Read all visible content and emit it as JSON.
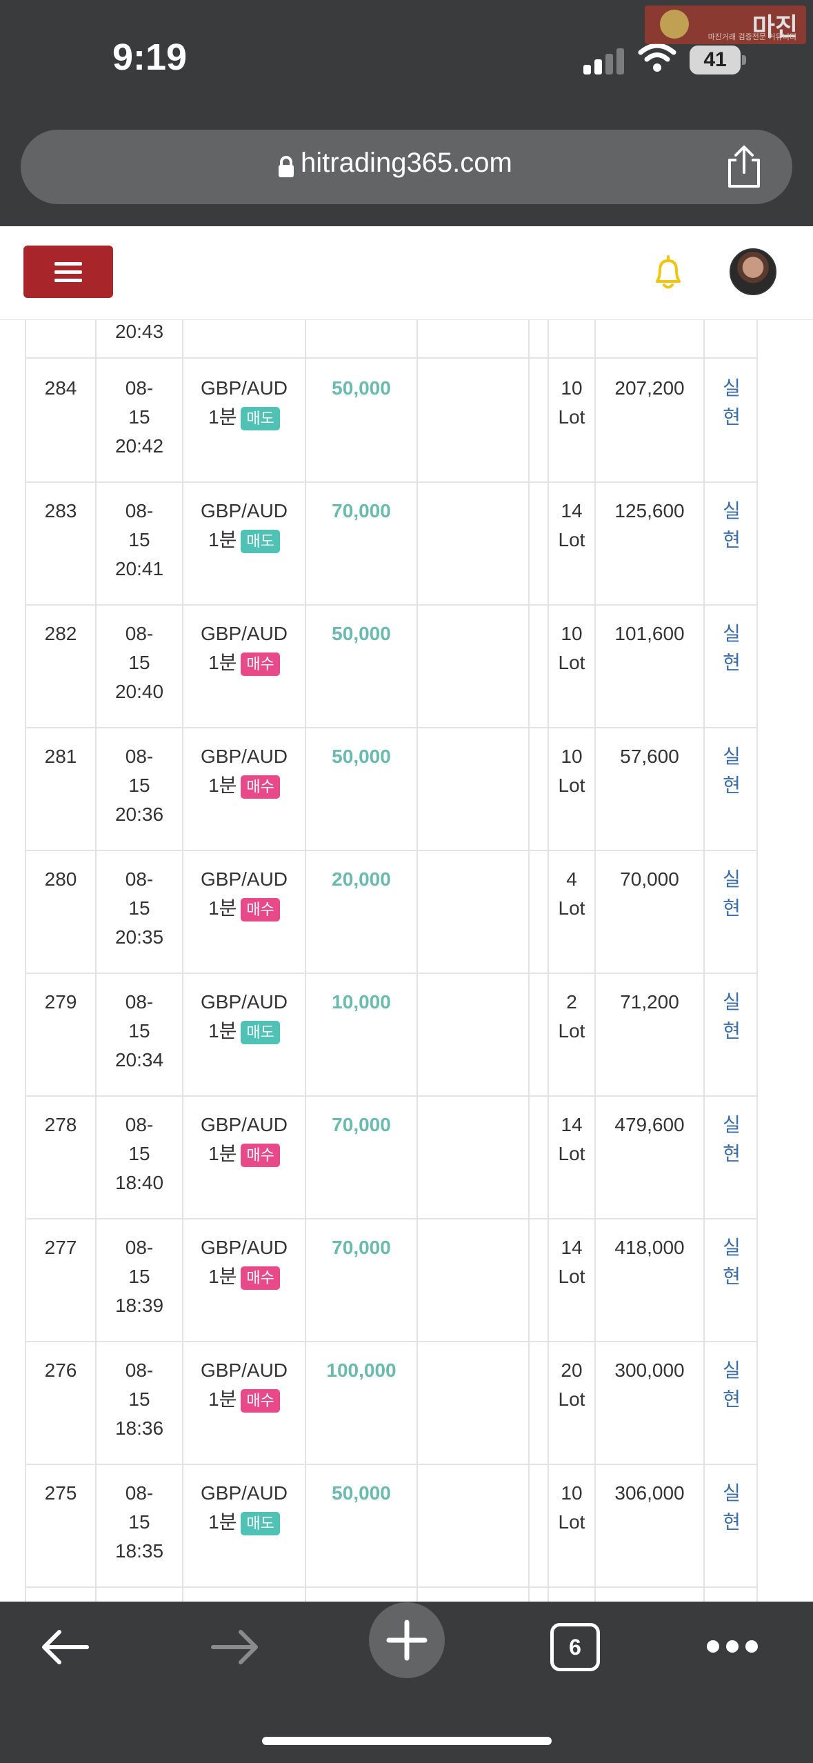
{
  "status_bar": {
    "time": "9:19",
    "battery": "41"
  },
  "watermark": {
    "title": "마진",
    "subtitle": "마진거래 검증전문 커뮤니티"
  },
  "browser": {
    "url": "hitrading365.com",
    "tab_count": "6"
  },
  "table": {
    "partial_top_row": {
      "time": "20:43"
    },
    "rows": [
      {
        "num": "284",
        "date": "08-",
        "day": "15",
        "time": "20:42",
        "pair": "GBP/AUD",
        "period": "1분",
        "side": "매도",
        "side_type": "sell",
        "amount": "50,000",
        "lot": "10",
        "lot_unit": "Lot",
        "profit": "207,200",
        "status1": "실",
        "status2": "현"
      },
      {
        "num": "283",
        "date": "08-",
        "day": "15",
        "time": "20:41",
        "pair": "GBP/AUD",
        "period": "1분",
        "side": "매도",
        "side_type": "sell",
        "amount": "70,000",
        "lot": "14",
        "lot_unit": "Lot",
        "profit": "125,600",
        "status1": "실",
        "status2": "현"
      },
      {
        "num": "282",
        "date": "08-",
        "day": "15",
        "time": "20:40",
        "pair": "GBP/AUD",
        "period": "1분",
        "side": "매수",
        "side_type": "buy",
        "amount": "50,000",
        "lot": "10",
        "lot_unit": "Lot",
        "profit": "101,600",
        "status1": "실",
        "status2": "현"
      },
      {
        "num": "281",
        "date": "08-",
        "day": "15",
        "time": "20:36",
        "pair": "GBP/AUD",
        "period": "1분",
        "side": "매수",
        "side_type": "buy",
        "amount": "50,000",
        "lot": "10",
        "lot_unit": "Lot",
        "profit": "57,600",
        "status1": "실",
        "status2": "현"
      },
      {
        "num": "280",
        "date": "08-",
        "day": "15",
        "time": "20:35",
        "pair": "GBP/AUD",
        "period": "1분",
        "side": "매수",
        "side_type": "buy",
        "amount": "20,000",
        "lot": "4",
        "lot_unit": "Lot",
        "profit": "70,000",
        "status1": "실",
        "status2": "현"
      },
      {
        "num": "279",
        "date": "08-",
        "day": "15",
        "time": "20:34",
        "pair": "GBP/AUD",
        "period": "1분",
        "side": "매도",
        "side_type": "sell",
        "amount": "10,000",
        "lot": "2",
        "lot_unit": "Lot",
        "profit": "71,200",
        "status1": "실",
        "status2": "현"
      },
      {
        "num": "278",
        "date": "08-",
        "day": "15",
        "time": "18:40",
        "pair": "GBP/AUD",
        "period": "1분",
        "side": "매수",
        "side_type": "buy",
        "amount": "70,000",
        "lot": "14",
        "lot_unit": "Lot",
        "profit": "479,600",
        "status1": "실",
        "status2": "현"
      },
      {
        "num": "277",
        "date": "08-",
        "day": "15",
        "time": "18:39",
        "pair": "GBP/AUD",
        "period": "1분",
        "side": "매수",
        "side_type": "buy",
        "amount": "70,000",
        "lot": "14",
        "lot_unit": "Lot",
        "profit": "418,000",
        "status1": "실",
        "status2": "현"
      },
      {
        "num": "276",
        "date": "08-",
        "day": "15",
        "time": "18:36",
        "pair": "GBP/AUD",
        "period": "1분",
        "side": "매수",
        "side_type": "buy",
        "amount": "100,000",
        "lot": "20",
        "lot_unit": "Lot",
        "profit": "300,000",
        "status1": "실",
        "status2": "현"
      },
      {
        "num": "275",
        "date": "08-",
        "day": "15",
        "time": "18:35",
        "pair": "GBP/AUD",
        "period": "1분",
        "side": "매도",
        "side_type": "sell",
        "amount": "50,000",
        "lot": "10",
        "lot_unit": "Lot",
        "profit": "306,000",
        "status1": "실",
        "status2": "현"
      }
    ]
  },
  "colors": {
    "sell_badge": "#4fc2b5",
    "buy_badge": "#e84a89",
    "amount": "#6bbab0",
    "status_link": "#3b6ea8",
    "menu_button": "#a8262a",
    "bell": "#f1c40f"
  }
}
